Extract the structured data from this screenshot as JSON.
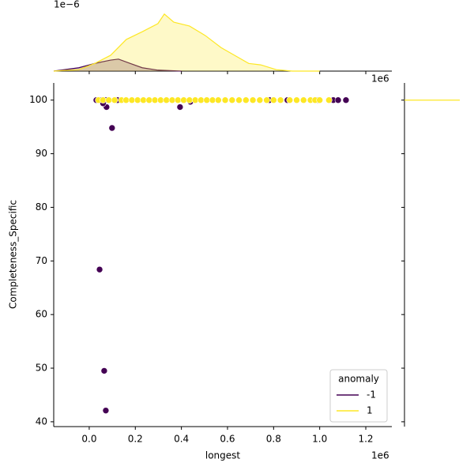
{
  "chart_data": [
    {
      "type": "scatter",
      "x_label": "longest",
      "y_label": "Completeness_Specific",
      "x_offset": "1e6",
      "legend_title": "anomaly",
      "legend": "lower right",
      "xlim": [
        -154000,
        1313000
      ],
      "xticks": [
        {
          "value": 0,
          "label": "0.0"
        },
        {
          "value": 200000,
          "label": "0.2"
        },
        {
          "value": 400000,
          "label": "0.4"
        },
        {
          "value": 600000,
          "label": "0.6"
        },
        {
          "value": 800000,
          "label": "0.8"
        },
        {
          "value": 1000000,
          "label": "1.0"
        },
        {
          "value": 1200000,
          "label": "1.2"
        }
      ],
      "ylim": [
        39.1,
        103.2
      ],
      "yticks": [
        40,
        50,
        60,
        70,
        80,
        90,
        100
      ],
      "series": [
        {
          "name": "-1",
          "color": "#440154",
          "x": [
            31000,
            51000,
            72000,
            123000,
            75000,
            99000,
            45000,
            65000,
            72000,
            394000,
            439000,
            782000,
            860000,
            994000,
            1059000,
            1080000,
            1114000,
            60000
          ],
          "values": [
            100,
            100,
            100,
            100,
            98.7,
            94.8,
            68.4,
            49.5,
            42.1,
            98.7,
            99.7,
            100,
            100,
            100,
            100,
            100,
            100,
            99.4
          ]
        },
        {
          "name": "1",
          "color": "#fde725",
          "x": [
            40000,
            60000,
            85000,
            110000,
            140000,
            160000,
            185000,
            210000,
            235000,
            260000,
            285000,
            310000,
            335000,
            360000,
            385000,
            410000,
            435000,
            460000,
            485000,
            510000,
            535000,
            560000,
            590000,
            620000,
            650000,
            680000,
            710000,
            740000,
            770000,
            800000,
            830000,
            870000,
            900000,
            930000,
            960000,
            980000,
            1000000,
            1040000
          ],
          "values": [
            100,
            100,
            100,
            100,
            100,
            100,
            100,
            100,
            100,
            100,
            100,
            100,
            100,
            100,
            100,
            100,
            100,
            100,
            100,
            100,
            100,
            100,
            100,
            100,
            100,
            100,
            100,
            100,
            100,
            100,
            100,
            100,
            100,
            100,
            100,
            100,
            100,
            100
          ]
        }
      ]
    },
    {
      "type": "kde",
      "y_offset": "1e−6",
      "x_offset": "1e6",
      "ylim": [
        0,
        1.4
      ],
      "series": [
        {
          "color": "#440154",
          "x": [
            -154000,
            -45000,
            24000,
            93000,
            127000,
            178000,
            230000,
            298000,
            401000
          ],
          "values": [
            0,
            0.07,
            0.16,
            0.23,
            0.25,
            0.16,
            0.07,
            0.02,
            0
          ]
        },
        {
          "color": "#fde725",
          "x": [
            -154000,
            -45000,
            24000,
            93000,
            161000,
            230000,
            298000,
            326000,
            367000,
            435000,
            504000,
            572000,
            641000,
            692000,
            744000,
            812000,
            881000,
            1000000
          ],
          "values": [
            0,
            0.03,
            0.16,
            0.33,
            0.66,
            0.82,
            0.99,
            1.19,
            1.02,
            0.94,
            0.74,
            0.49,
            0.3,
            0.16,
            0.13,
            0.03,
            0,
            0
          ]
        }
      ]
    },
    {
      "type": "kde-horizontal",
      "xlim": [
        0,
        1
      ],
      "series": [
        {
          "color": "#fde725",
          "y": [
            100
          ],
          "values": [
            1
          ]
        }
      ]
    }
  ]
}
